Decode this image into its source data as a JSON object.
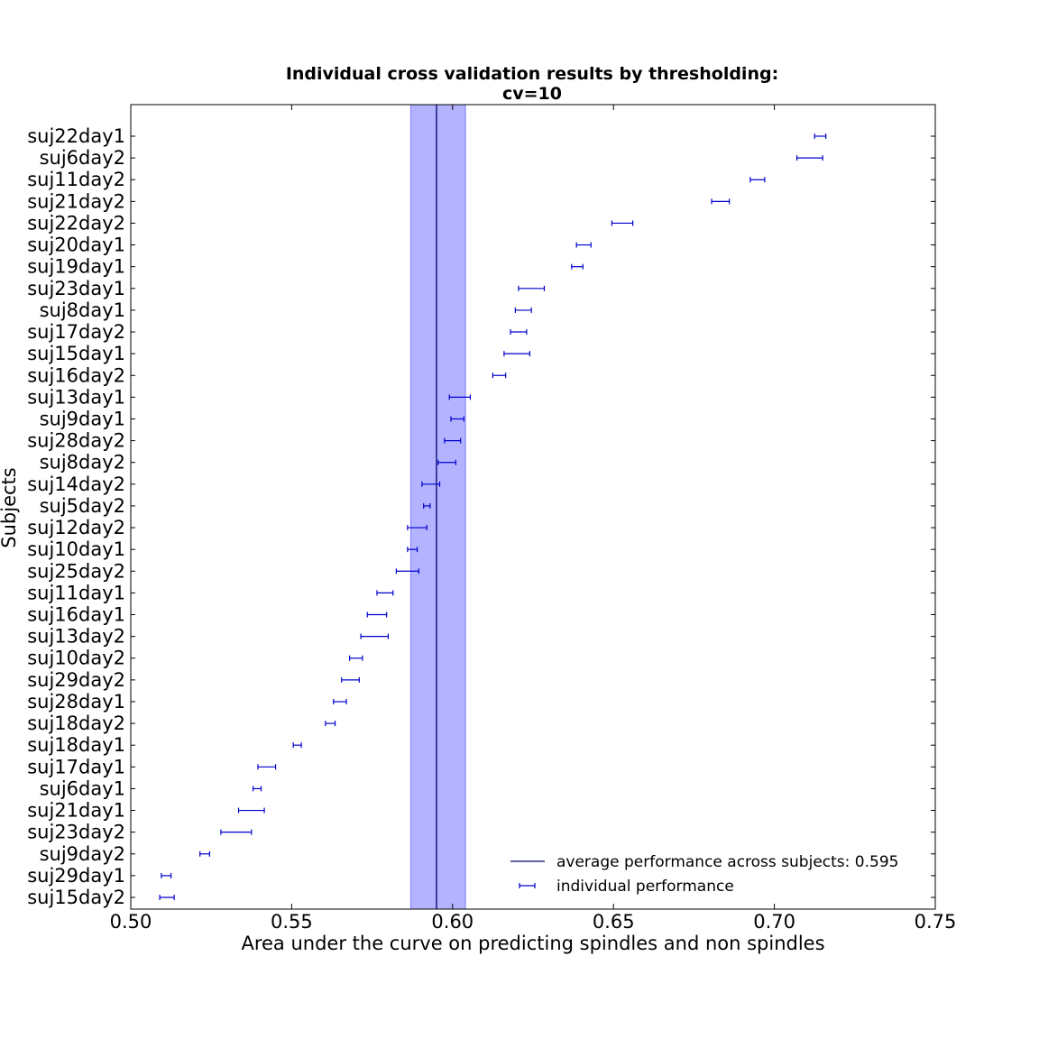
{
  "chart_data": {
    "type": "errorbar",
    "title_line1": "Individual cross validation results by thresholding:",
    "title_line2": "cv=10",
    "xlabel": "Area under the curve on predicting spindles and non spindles",
    "ylabel": "Subjects",
    "xlim": [
      0.5,
      0.75
    ],
    "xticks": [
      "0.50",
      "0.55",
      "0.60",
      "0.65",
      "0.70",
      "0.75"
    ],
    "grid": false,
    "legend_position": "lower-right",
    "legend": {
      "mean_label": "average performance across subjects: 0.595",
      "individual_label": "individual performance"
    },
    "mean": 0.595,
    "mean_band": [
      0.587,
      0.604
    ],
    "colors": {
      "errorbar": "#0000cd",
      "mean_line": "#00006e",
      "band": "#b3b3ff",
      "band_edge": "#7f7fff"
    },
    "subjects": [
      {
        "label": "suj22day1",
        "low": 0.7125,
        "high": 0.716
      },
      {
        "label": "suj6day2",
        "low": 0.707,
        "high": 0.715
      },
      {
        "label": "suj11day2",
        "low": 0.6925,
        "high": 0.697
      },
      {
        "label": "suj21day2",
        "low": 0.6805,
        "high": 0.686
      },
      {
        "label": "suj22day2",
        "low": 0.6495,
        "high": 0.656
      },
      {
        "label": "suj20day1",
        "low": 0.6385,
        "high": 0.643
      },
      {
        "label": "suj19day1",
        "low": 0.637,
        "high": 0.6405
      },
      {
        "label": "suj23day1",
        "low": 0.6205,
        "high": 0.6285
      },
      {
        "label": "suj8day1",
        "low": 0.6195,
        "high": 0.6245
      },
      {
        "label": "suj17day2",
        "low": 0.618,
        "high": 0.623
      },
      {
        "label": "suj15day1",
        "low": 0.616,
        "high": 0.624
      },
      {
        "label": "suj16day2",
        "low": 0.6125,
        "high": 0.6165
      },
      {
        "label": "suj13day1",
        "low": 0.599,
        "high": 0.6055
      },
      {
        "label": "suj9day1",
        "low": 0.5995,
        "high": 0.6035
      },
      {
        "label": "suj28day2",
        "low": 0.5975,
        "high": 0.6025
      },
      {
        "label": "suj8day2",
        "low": 0.5955,
        "high": 0.601
      },
      {
        "label": "suj14day2",
        "low": 0.5905,
        "high": 0.596
      },
      {
        "label": "suj5day2",
        "low": 0.591,
        "high": 0.593
      },
      {
        "label": "suj12day2",
        "low": 0.586,
        "high": 0.592
      },
      {
        "label": "suj10day1",
        "low": 0.586,
        "high": 0.589
      },
      {
        "label": "suj25day2",
        "low": 0.5825,
        "high": 0.5895
      },
      {
        "label": "suj11day1",
        "low": 0.5765,
        "high": 0.5815
      },
      {
        "label": "suj16day1",
        "low": 0.5735,
        "high": 0.5795
      },
      {
        "label": "suj13day2",
        "low": 0.5715,
        "high": 0.58
      },
      {
        "label": "suj10day2",
        "low": 0.568,
        "high": 0.572
      },
      {
        "label": "suj29day2",
        "low": 0.5655,
        "high": 0.571
      },
      {
        "label": "suj28day1",
        "low": 0.563,
        "high": 0.567
      },
      {
        "label": "suj18day2",
        "low": 0.5605,
        "high": 0.5635
      },
      {
        "label": "suj18day1",
        "low": 0.5505,
        "high": 0.553
      },
      {
        "label": "suj17day1",
        "low": 0.5395,
        "high": 0.545
      },
      {
        "label": "suj6day1",
        "low": 0.538,
        "high": 0.5405
      },
      {
        "label": "suj21day1",
        "low": 0.5335,
        "high": 0.5415
      },
      {
        "label": "suj23day2",
        "low": 0.528,
        "high": 0.5375
      },
      {
        "label": "suj9day2",
        "low": 0.5215,
        "high": 0.5245
      },
      {
        "label": "suj29day1",
        "low": 0.5095,
        "high": 0.5125
      },
      {
        "label": "suj15day2",
        "low": 0.509,
        "high": 0.5135
      }
    ]
  }
}
